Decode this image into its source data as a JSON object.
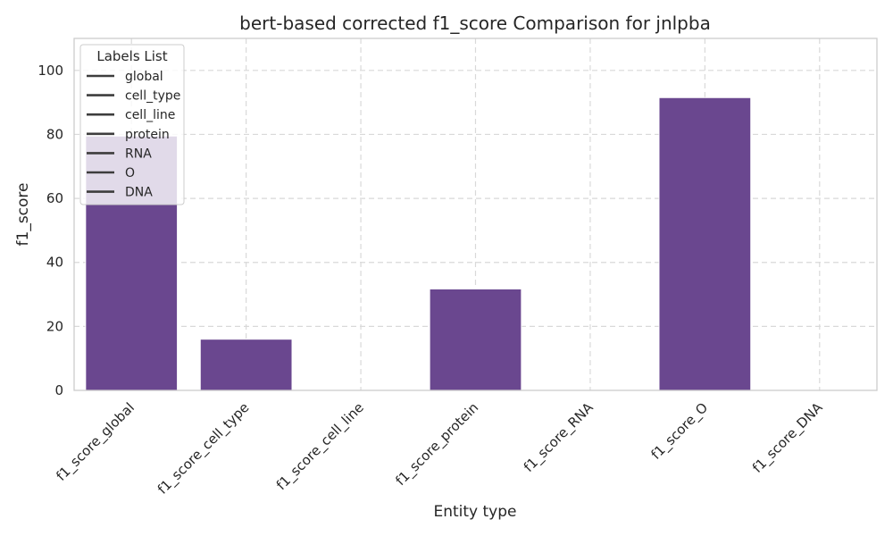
{
  "chart_data": {
    "type": "bar",
    "title": "bert-based corrected f1_score Comparison for jnlpba",
    "xlabel": "Entity type",
    "ylabel": "f1_score",
    "categories": [
      "f1_score_global",
      "f1_score_cell_type",
      "f1_score_cell_line",
      "f1_score_protein",
      "f1_score_RNA",
      "f1_score_O",
      "f1_score_DNA"
    ],
    "values": [
      79.5,
      16.0,
      0,
      31.7,
      0,
      91.5,
      0
    ],
    "ylim": [
      0,
      110
    ],
    "yticks": [
      0,
      20,
      40,
      60,
      80,
      100
    ],
    "grid": true,
    "legend": {
      "title": "Labels List",
      "placement": "top-left",
      "entries": [
        "global",
        "cell_type",
        "cell_line",
        "protein",
        "RNA",
        "O",
        "DNA"
      ]
    },
    "colors": {
      "bar": "#6a478f",
      "grid": "#d9d9d9",
      "axes": "#cccccc",
      "legend_line": "#3d3d3d"
    }
  }
}
